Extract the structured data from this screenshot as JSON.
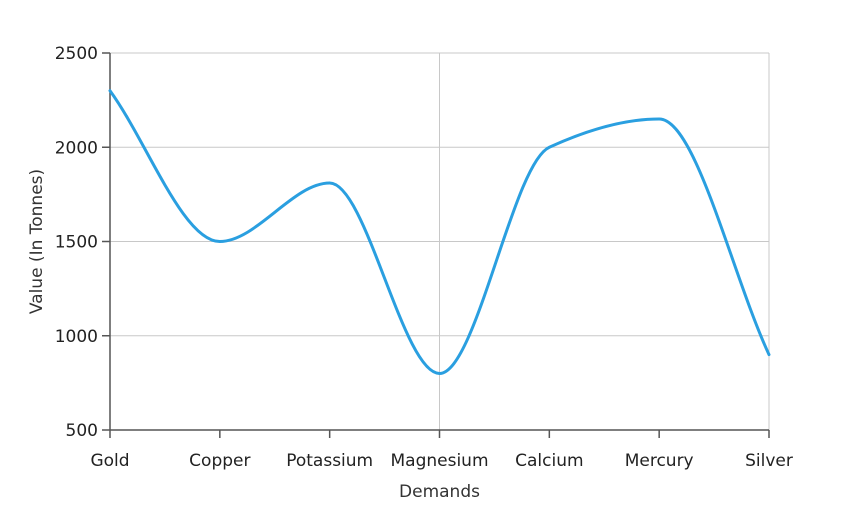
{
  "chart_data": {
    "type": "line",
    "title": "",
    "xlabel": "Demands",
    "ylabel": "Value (In Tonnes)",
    "categories": [
      "Gold",
      "Copper",
      "Potassium",
      "Magnesium",
      "Calcium",
      "Mercury",
      "Silver"
    ],
    "series": [
      {
        "values": [
          2300,
          1500,
          1810,
          800,
          2000,
          2150,
          900
        ],
        "color": "#2a9fe0"
      }
    ],
    "ylim": [
      500,
      2500
    ],
    "yticks": [
      "500",
      "1000",
      "1500",
      "2000",
      "2500"
    ],
    "grid": true,
    "smooth": true,
    "legend": "none"
  }
}
